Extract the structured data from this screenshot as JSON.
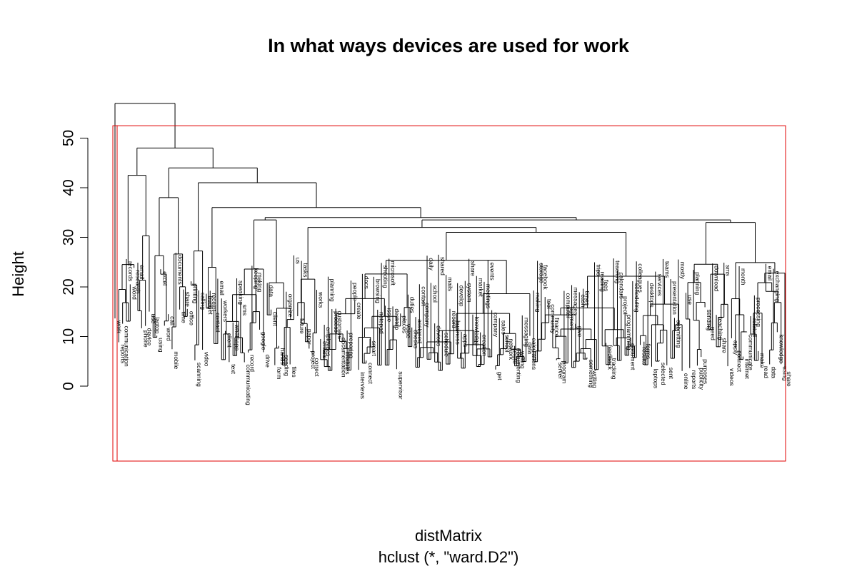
{
  "chart_data": {
    "type": "dendrogram",
    "title": "In what ways devices are used for work",
    "xlabel": "distMatrix",
    "sublabel": "hclust (*, \"ward.D2\")",
    "ylabel": "Height",
    "yticks": [
      0,
      10,
      20,
      30,
      40,
      50
    ],
    "ylim": [
      -15,
      58
    ],
    "root_height": 57,
    "cluster_boxes": 2,
    "box_color": "#e00000",
    "leaves": [
      "work",
      "reports",
      "communication",
      "records",
      "word",
      "research",
      "email",
      "phone",
      "device",
      "use",
      "laptop",
      "using",
      "excel",
      "word",
      "call",
      "mobile",
      "documents",
      "time",
      "share",
      "office",
      "printing",
      "scanning",
      "calling",
      "video",
      "budget",
      "receipt",
      "contact",
      "email",
      "workers",
      "client",
      "text",
      "whatsapp",
      "speaking",
      "sms",
      "communicating",
      "record",
      "keeping",
      "making",
      "google",
      "drive",
      "data",
      "client",
      "form",
      "hands",
      "sending",
      "organize",
      "files",
      "us",
      "future",
      "tasks",
      "paper",
      "project",
      "correct",
      "works",
      "emails",
      "employees",
      "planning",
      "process",
      "customers",
      "documentation",
      "modules",
      "preparing",
      "people",
      "create",
      "interviews",
      "docs",
      "connect",
      "smart",
      "browsing",
      "notepad",
      "shooting",
      "issue",
      "microsoft",
      "desktop",
      "supervisor",
      "places",
      "voice",
      "duties",
      "checks",
      "assigned",
      "contact",
      "company",
      "daily",
      "school",
      "devices",
      "shared",
      "schedule",
      "mails",
      "record",
      "business",
      "develop",
      "apps",
      "system",
      "share",
      "knowledge",
      "market",
      "creation",
      "meetings",
      "events",
      "company",
      "get",
      "sales",
      "school",
      "network",
      "photo",
      "documenting",
      "writing",
      "messaging",
      "data",
      "calculations",
      "making",
      "storage",
      "facebook",
      "tool",
      "community",
      "finance",
      "server",
      "program",
      "computer",
      "payment",
      "messages",
      "give",
      "cash",
      "times",
      "something",
      "writing",
      "trips",
      "reading",
      "fees",
      "feedback",
      "tracking",
      "teaching",
      "calendars",
      "project",
      "programming",
      "document",
      "scheduling",
      "colleagues",
      "results",
      "forms",
      "desktops",
      "laptops",
      "services",
      "selected",
      "teams",
      "sent",
      "presentation",
      "submitting",
      "mostly",
      "online",
      "use",
      "reports",
      "planning",
      "publicity",
      "purposes",
      "sending",
      "need",
      "download",
      "teaching",
      "share",
      "sms",
      "videos",
      "apply",
      "connect",
      "month",
      "internet",
      "communicate",
      "related",
      "processing",
      "make",
      "read",
      "email",
      "data",
      "exchanging",
      "knowledge",
      "using",
      "share",
      "exchange"
    ]
  }
}
